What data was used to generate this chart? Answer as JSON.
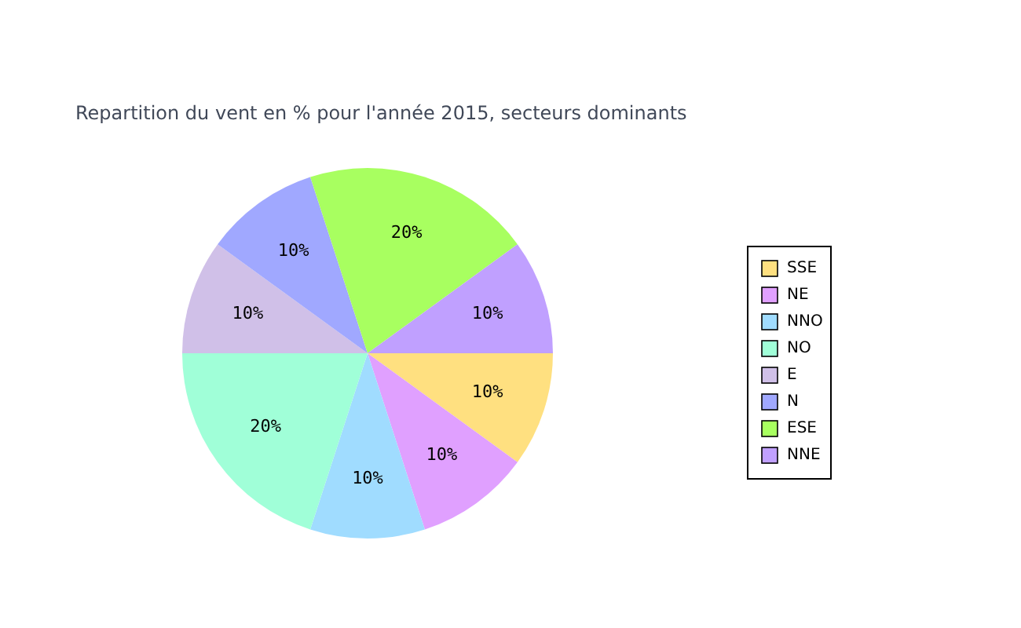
{
  "chart_data": {
    "type": "pie",
    "title": "Repartition du vent en % pour l'année 2015, secteurs dominants",
    "categories": [
      "SSE",
      "NE",
      "NNO",
      "NO",
      "E",
      "N",
      "ESE",
      "NNE"
    ],
    "values": [
      10,
      10,
      10,
      20,
      10,
      10,
      20,
      10
    ],
    "colors": [
      "#ffe080",
      "#e0a0ff",
      "#a0dcff",
      "#a0ffd8",
      "#d0c0e8",
      "#a0a8ff",
      "#a8ff60",
      "#c0a0ff"
    ],
    "value_labels": [
      "10%",
      "10%",
      "10%",
      "20%",
      "10%",
      "10%",
      "20%",
      "10%"
    ],
    "legend": "right"
  }
}
